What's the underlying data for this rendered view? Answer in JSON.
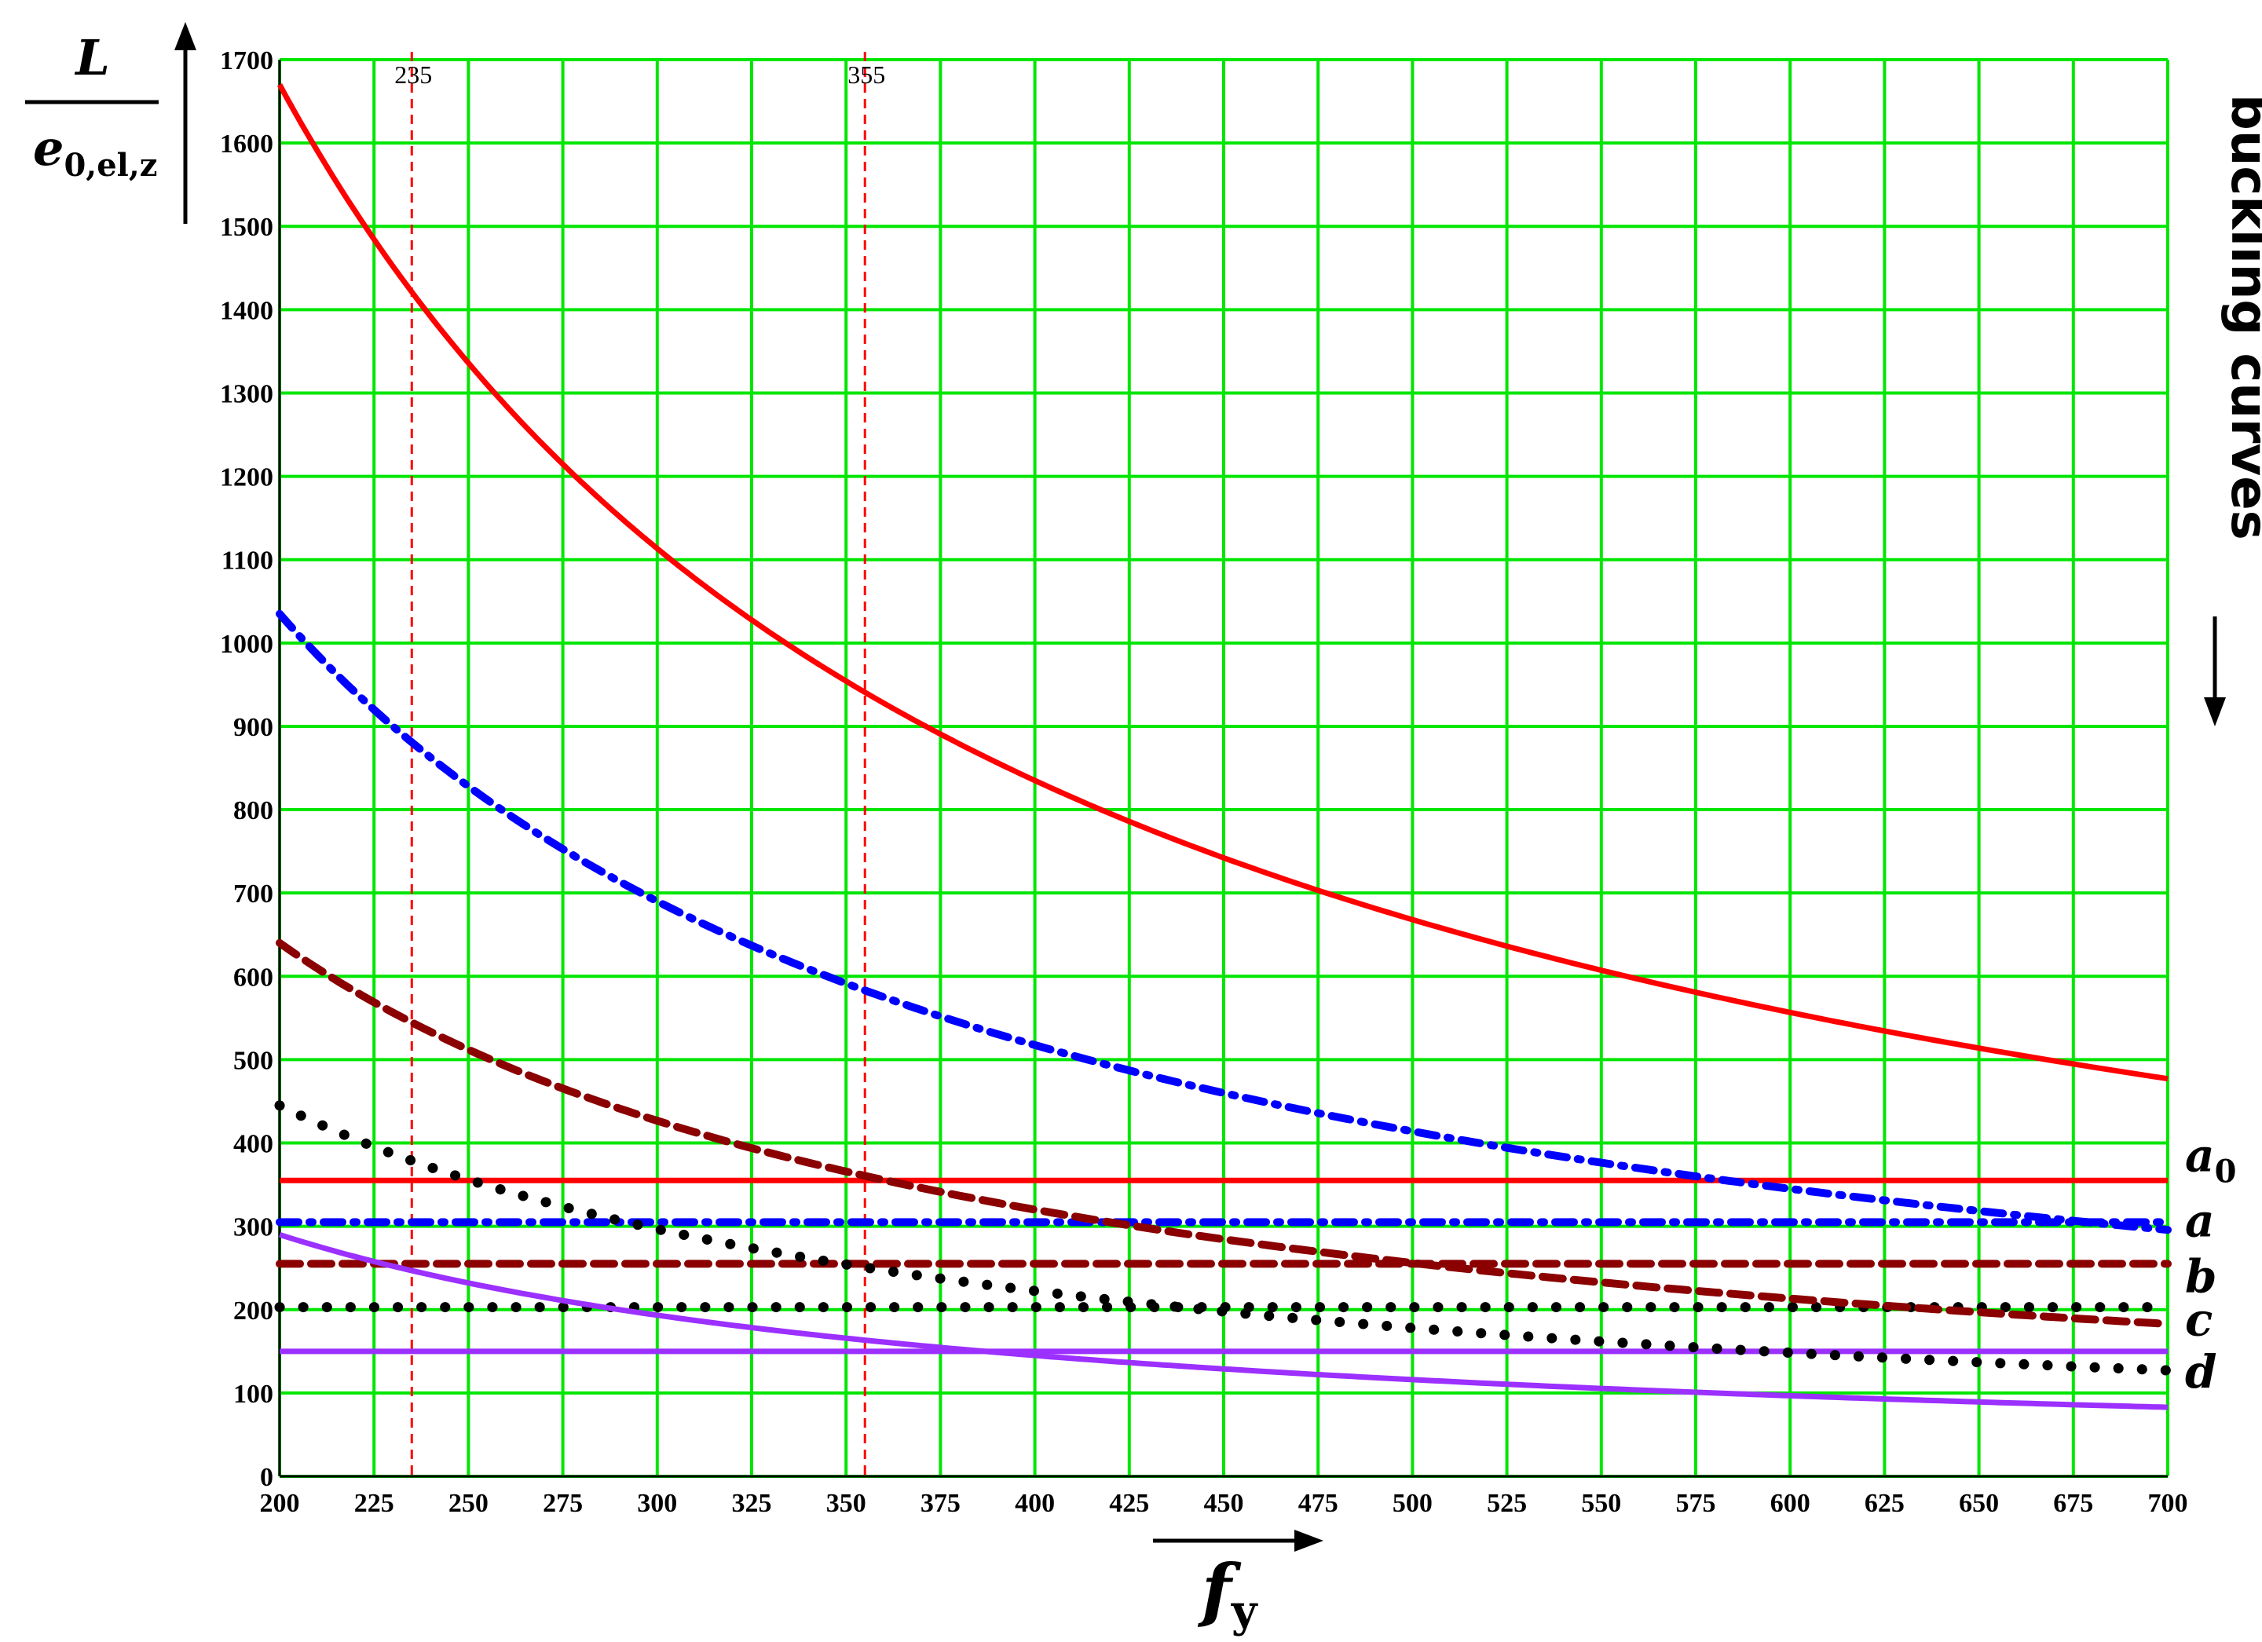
{
  "chart_data": {
    "type": "line",
    "xlabel": "f",
    "xlabel_sub": "y",
    "ylabel_num": "L",
    "ylabel_den": "e",
    "ylabel_den_sub": "0,el,z",
    "side_title": "buckling curves",
    "xlim": [
      200,
      700
    ],
    "ylim": [
      0,
      1700
    ],
    "x_ticks": [
      200,
      225,
      250,
      275,
      300,
      325,
      350,
      375,
      400,
      425,
      450,
      475,
      500,
      525,
      550,
      575,
      600,
      625,
      650,
      675,
      700
    ],
    "y_ticks": [
      0,
      100,
      200,
      300,
      400,
      500,
      600,
      700,
      800,
      900,
      1000,
      1100,
      1200,
      1300,
      1400,
      1500,
      1600,
      1700
    ],
    "grid": true,
    "grid_color": "#00e600",
    "reference_lines": [
      {
        "x": 235,
        "label": "235",
        "color": "#ff0000"
      },
      {
        "x": 355,
        "label": "355",
        "color": "#ff0000"
      }
    ],
    "series": [
      {
        "name": "a0 curve",
        "style": "solid",
        "color": "#ff0000",
        "coef": 1670
      },
      {
        "name": "a curve",
        "style": "dashdot",
        "color": "#0000ff",
        "coef": 1035
      },
      {
        "name": "b curve",
        "style": "dashed",
        "color": "#8b0000",
        "coef": 640
      },
      {
        "name": "c curve",
        "style": "dotted",
        "color": "#000000",
        "coef": 445
      },
      {
        "name": "d curve",
        "style": "solid",
        "color": "#9b30ff",
        "coef": 290
      }
    ],
    "series_formula": "y = coef * 200 / fy",
    "horizontal_lines": [
      {
        "name": "a0",
        "label": "a",
        "sub": "0",
        "y": 355,
        "style": "solid",
        "color": "#ff0000"
      },
      {
        "name": "a",
        "label": "a",
        "sub": "",
        "y": 305,
        "style": "dashdot",
        "color": "#0000ff"
      },
      {
        "name": "b",
        "label": "b",
        "sub": "",
        "y": 255,
        "style": "dashed",
        "color": "#8b0000"
      },
      {
        "name": "c",
        "label": "c",
        "sub": "",
        "y": 203,
        "style": "dotted",
        "color": "#000000"
      },
      {
        "name": "d",
        "label": "d",
        "sub": "",
        "y": 150,
        "style": "solid",
        "color": "#9b30ff"
      }
    ]
  }
}
